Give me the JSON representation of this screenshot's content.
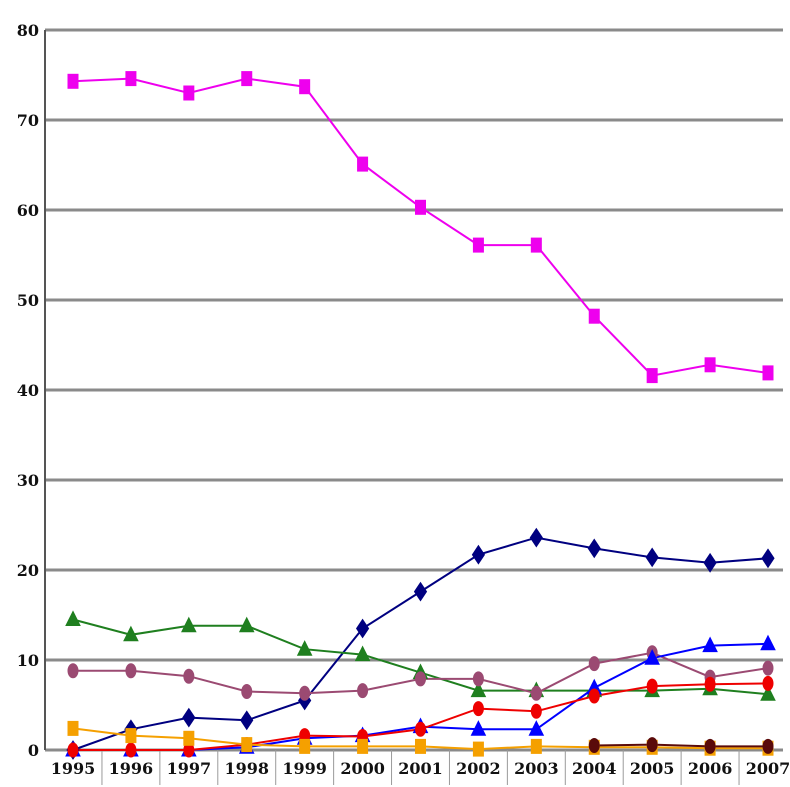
{
  "chart_data": {
    "type": "line",
    "title": "",
    "xlabel": "",
    "ylabel": "",
    "categories": [
      "1995",
      "1996",
      "1997",
      "1998",
      "1999",
      "2000",
      "2001",
      "2002",
      "2003",
      "2004",
      "2005",
      "2006",
      "2007"
    ],
    "yticks": [
      "0",
      "10",
      "20",
      "30",
      "40",
      "50",
      "60",
      "70",
      "80"
    ],
    "ylim": [
      0,
      80
    ],
    "grid": true,
    "legend": "none",
    "series": [
      {
        "color": "#ee00ee",
        "marker": "square",
        "values": [
          74.3,
          74.6,
          73.0,
          74.6,
          73.7,
          65.1,
          60.3,
          56.1,
          56.1,
          48.2,
          41.6,
          42.8,
          41.9
        ]
      },
      {
        "color": "#000080",
        "marker": "diamond",
        "values": [
          0.0,
          2.3,
          3.6,
          3.3,
          5.5,
          13.5,
          17.6,
          21.7,
          23.6,
          22.4,
          21.4,
          20.8,
          21.3
        ]
      },
      {
        "color": "#1f7f1f",
        "marker": "triangle",
        "values": [
          14.5,
          12.8,
          13.8,
          13.8,
          11.2,
          10.6,
          8.6,
          6.6,
          6.6,
          6.6,
          6.6,
          6.8,
          6.2
        ]
      },
      {
        "color": "#9b4a72",
        "marker": "circle",
        "values": [
          8.8,
          8.8,
          8.2,
          6.5,
          6.3,
          6.6,
          7.9,
          7.9,
          6.3,
          9.6,
          10.8,
          8.1,
          9.1
        ]
      },
      {
        "color": "#0000ff",
        "marker": "triangle",
        "values": [
          0.0,
          0.0,
          0.0,
          0.3,
          1.3,
          1.6,
          2.6,
          2.3,
          2.3,
          6.9,
          10.2,
          11.6,
          11.8
        ]
      },
      {
        "color": "#ee0000",
        "marker": "circle",
        "values": [
          0.0,
          0.0,
          0.0,
          0.6,
          1.6,
          1.5,
          2.3,
          4.6,
          4.3,
          6.0,
          7.1,
          7.3,
          7.4
        ]
      },
      {
        "color": "#f5a000",
        "marker": "square",
        "values": [
          2.4,
          1.6,
          1.3,
          0.6,
          0.4,
          0.4,
          0.4,
          0.1,
          0.4,
          0.3,
          0.3,
          0.2,
          0.2
        ]
      },
      {
        "color": "#5a0a0a",
        "marker": "circle",
        "values": [
          null,
          null,
          null,
          null,
          null,
          null,
          null,
          null,
          null,
          0.5,
          0.6,
          0.4,
          0.4
        ]
      }
    ]
  }
}
